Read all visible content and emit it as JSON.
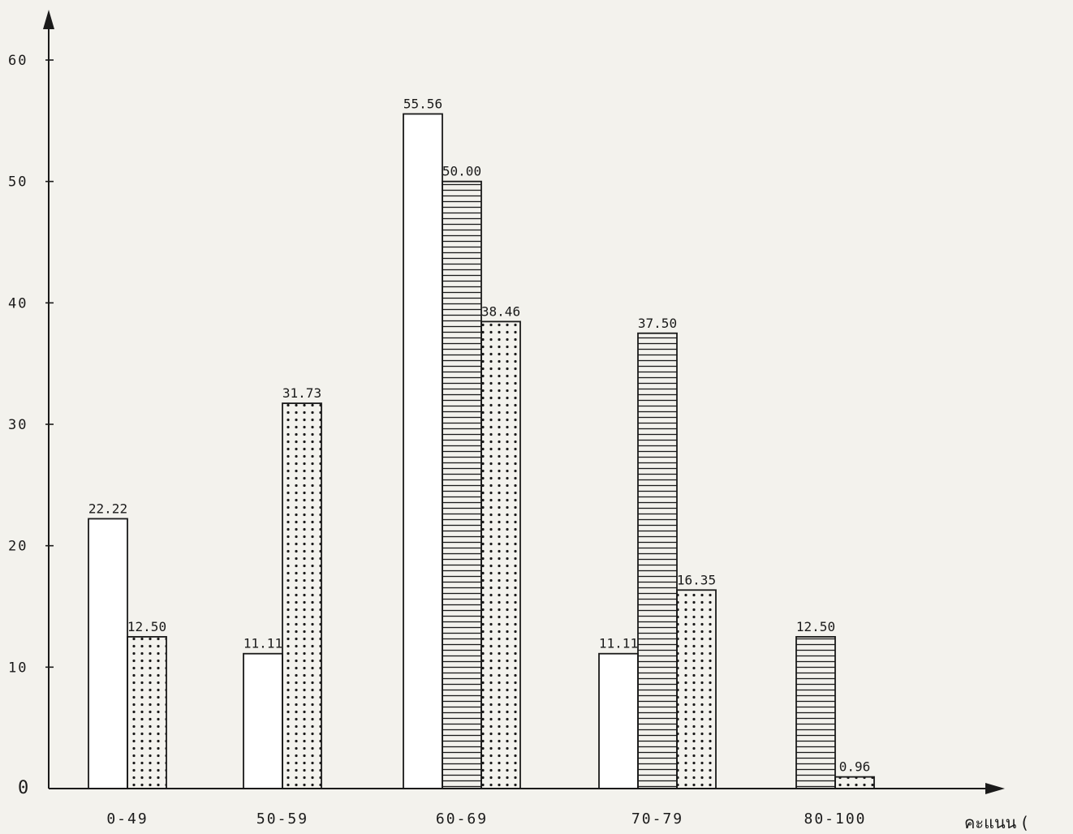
{
  "chart_data": {
    "type": "bar",
    "title": "",
    "xlabel": "คะแนน (",
    "ylabel": "",
    "ylim": [
      0,
      60
    ],
    "y_ticks": [
      "0",
      "10",
      "20",
      "30",
      "40",
      "50",
      "60"
    ],
    "categories": [
      "0-49",
      "50-59",
      "60-69",
      "70-79",
      "80-100"
    ],
    "grid": false,
    "legend": "none",
    "series": [
      {
        "pattern": "blank",
        "values": [
          22.22,
          11.11,
          55.56,
          11.11,
          null
        ],
        "labels": [
          "22.22",
          "11.11",
          "55.56",
          "11.11",
          ""
        ]
      },
      {
        "pattern": "horizontal-lines",
        "values": [
          null,
          null,
          50.0,
          37.5,
          12.5
        ],
        "labels": [
          "",
          "",
          "50.00",
          "37.50",
          "12.50"
        ]
      },
      {
        "pattern": "dots",
        "values": [
          12.5,
          31.73,
          38.46,
          16.35,
          0.96
        ],
        "labels": [
          "12.50",
          "31.73",
          "38.46",
          "16.35",
          "0.96"
        ]
      }
    ]
  }
}
